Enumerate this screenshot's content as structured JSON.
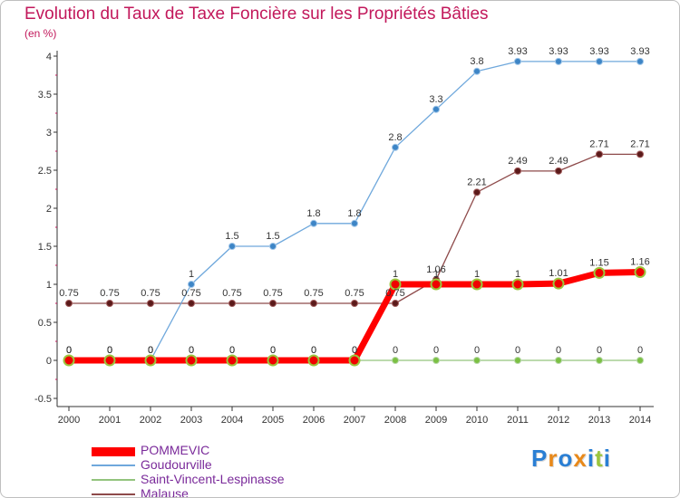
{
  "title": "Evolution du Taux de Taxe Foncière sur les Propriétés Bâties",
  "unit_label": "(en %)",
  "logo": {
    "letters": [
      "P",
      "r",
      "o",
      "x",
      "i",
      "t",
      "i"
    ],
    "colors": [
      "#2a7fd4",
      "#e8891a",
      "#2a7fd4",
      "#e8891a",
      "#2a7fd4",
      "#9bc53d",
      "#2a7fd4"
    ]
  },
  "chart_data": {
    "type": "line",
    "x": [
      "2000",
      "2001",
      "2002",
      "2003",
      "2004",
      "2005",
      "2006",
      "2007",
      "2008",
      "2009",
      "2010",
      "2011",
      "2012",
      "2013",
      "2014"
    ],
    "ylim": [
      -0.5,
      4
    ],
    "yticks": [
      "4",
      "3.5",
      "3",
      "2.5",
      "2",
      "1.5",
      "1",
      "0.5",
      "0",
      "-0.5"
    ],
    "yticks_values": [
      4,
      3.5,
      3,
      2.5,
      2,
      1.5,
      1,
      0.5,
      0,
      -0.5
    ],
    "grid": false,
    "legend_position": "bottom-left",
    "series": [
      {
        "name": "POMMEVIC",
        "color": "#ff0000",
        "marker_color": "#f00000",
        "values": [
          0,
          0,
          0,
          0,
          0,
          0,
          0,
          0,
          1,
          1,
          1,
          1,
          1.01,
          1.15,
          1.16
        ],
        "labels": [
          "0",
          "0",
          "0",
          "0",
          "0",
          "0",
          "0",
          "0",
          "1",
          "1",
          "1",
          "1",
          "1.01",
          "1.15",
          "1.16"
        ]
      },
      {
        "name": "Goudourville",
        "color": "#6fa8dc",
        "marker_color": "#3d85c6",
        "values": [
          0,
          0,
          0,
          1,
          1.5,
          1.5,
          1.8,
          1.8,
          2.8,
          3.3,
          3.8,
          3.93,
          3.93,
          3.93,
          3.93
        ],
        "labels": [
          "0",
          "0",
          "0",
          "1",
          "1.5",
          "1.5",
          "1.8",
          "1.8",
          "2.8",
          "3.3",
          "3.8",
          "3.93",
          "3.93",
          "3.93",
          "3.93"
        ]
      },
      {
        "name": "Saint-Vincent-Lespinasse",
        "color": "#93c47d",
        "marker_color": "#7bc043",
        "values": [
          0,
          0,
          0,
          0,
          0,
          0,
          0,
          0,
          0,
          0,
          0,
          0,
          0,
          0,
          0
        ],
        "labels": [
          "0",
          "0",
          "0",
          "0",
          "0",
          "0",
          "0",
          "0",
          "0",
          "0",
          "0",
          "0",
          "0",
          "0",
          "0"
        ]
      },
      {
        "name": "Malause",
        "color": "#8e4a4a",
        "marker_color": "#5b1a1a",
        "values": [
          0.75,
          0.75,
          0.75,
          0.75,
          0.75,
          0.75,
          0.75,
          0.75,
          0.75,
          1.06,
          2.21,
          2.49,
          2.49,
          2.71,
          2.71
        ],
        "labels": [
          "0.75",
          "0.75",
          "0.75",
          "0.75",
          "0.75",
          "0.75",
          "0.75",
          "0.75",
          "0.75",
          "1.06",
          "2.21",
          "2.49",
          "2.49",
          "2.71",
          "2.71"
        ]
      }
    ]
  }
}
